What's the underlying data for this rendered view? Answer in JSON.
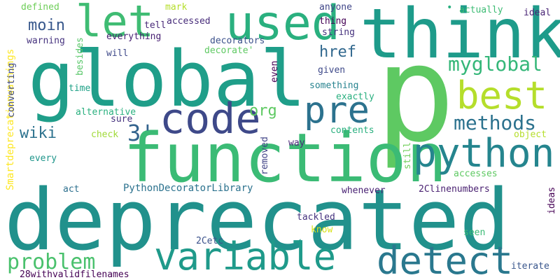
{
  "words": [
    {
      "text": "deprecated",
      "color": "#21918c"
    },
    {
      "text": "p",
      "color": "#5ec962"
    },
    {
      "text": "global",
      "color": "#1f9e89"
    },
    {
      "text": "function",
      "color": "#3bbb75"
    },
    {
      "text": "think",
      "color": "#1e9b8a"
    },
    {
      "text": "used",
      "color": "#2ab07f"
    },
    {
      "text": "let",
      "color": "#3fbc73"
    },
    {
      "text": "best",
      "color": "#b5de2b"
    },
    {
      "text": "python",
      "color": "#25858e"
    },
    {
      "text": "code",
      "color": "#3e4989"
    },
    {
      "text": "variable",
      "color": "#1f9a8a"
    },
    {
      "text": "detect",
      "color": "#2a788e"
    },
    {
      "text": "pre",
      "color": "#2c728e"
    },
    {
      "text": "methods",
      "color": "#2c728e"
    },
    {
      "text": "myglobal",
      "color": "#35b779"
    },
    {
      "text": "problem",
      "color": "#4ac16d"
    },
    {
      "text": "3'",
      "color": "#33638d"
    },
    {
      "text": "href",
      "color": "#31688e"
    },
    {
      "text": "org",
      "color": "#5ec962"
    },
    {
      "text": "moin",
      "color": "#38588c"
    },
    {
      "text": "wiki",
      "color": "#2c728e"
    },
    {
      "text": "PythonDecoratorLibrary",
      "color": "#2c728e"
    },
    {
      "text": "Smartdeprecationwarnings",
      "color": "#fde725"
    },
    {
      "text": "defined",
      "color": "#6ece58"
    },
    {
      "text": "mark",
      "color": "#b5de2b"
    },
    {
      "text": "tell",
      "color": "#482878"
    },
    {
      "text": "accessed",
      "color": "#472c7a"
    },
    {
      "text": "anyone",
      "color": "#404688"
    },
    {
      "text": "thing",
      "color": "#440154"
    },
    {
      "text": "string",
      "color": "#46327e"
    },
    {
      "text": "actually",
      "color": "#3dbc74"
    },
    {
      "text": "ideal",
      "color": "#482475"
    },
    {
      "text": "everything",
      "color": "#482173"
    },
    {
      "text": "decorators",
      "color": "#3b518b"
    },
    {
      "text": "decorate'",
      "color": "#5ec962"
    },
    {
      "text": "warning",
      "color": "#46337f"
    },
    {
      "text": "will",
      "color": "#3e4989"
    },
    {
      "text": "besides",
      "color": "#56c667"
    },
    {
      "text": "converting",
      "color": "#3e4a89"
    },
    {
      "text": "even",
      "color": "#440154"
    },
    {
      "text": "given",
      "color": "#3e4989"
    },
    {
      "text": "something",
      "color": "#26828e"
    },
    {
      "text": "time",
      "color": "#1fa187"
    },
    {
      "text": "exactly",
      "color": "#29af7f"
    },
    {
      "text": "alternative",
      "color": "#2ab07f"
    },
    {
      "text": "sure",
      "color": "#46337f"
    },
    {
      "text": "check",
      "color": "#a0da39"
    },
    {
      "text": "contents",
      "color": "#2ab07f"
    },
    {
      "text": "object",
      "color": "#b5de2b"
    },
    {
      "text": "removed",
      "color": "#414487"
    },
    {
      "text": "way",
      "color": "#482878"
    },
    {
      "text": "every",
      "color": "#1f968b"
    },
    {
      "text": "still",
      "color": "#6ece58"
    },
    {
      "text": "accesses",
      "color": "#5ec962"
    },
    {
      "text": "act",
      "color": "#2d708e"
    },
    {
      "text": "whenever",
      "color": "#482173"
    },
    {
      "text": "2Clinenumbers",
      "color": "#481f70"
    },
    {
      "text": "ideas",
      "color": "#440154"
    },
    {
      "text": "tackled",
      "color": "#46337f"
    },
    {
      "text": "know",
      "color": "#d8e219"
    },
    {
      "text": "seen",
      "color": "#3bbb75"
    },
    {
      "text": "2Cetc",
      "color": "#3b528b"
    },
    {
      "text": "28withvalidfilenames",
      "color": "#440154"
    },
    {
      "text": "iterate",
      "color": "#39568c"
    },
    {
      "text": "•",
      "color": "#29af7f"
    }
  ]
}
